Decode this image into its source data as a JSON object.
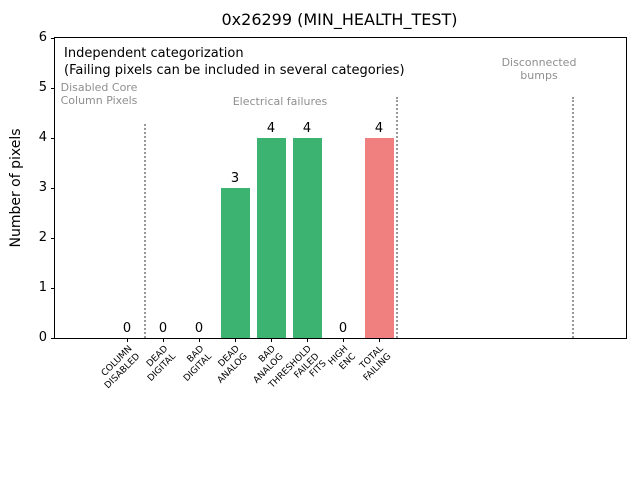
{
  "window": {
    "title": "0x26299 (MIN_HEALTH_TEST)"
  },
  "chart_data": {
    "type": "bar",
    "title": "0x26299 (MIN_HEALTH_TEST)",
    "xlabel": "",
    "ylabel": "Number of pixels",
    "ylim": [
      0,
      6
    ],
    "yticks": [
      0,
      1,
      2,
      3,
      4,
      5,
      6
    ],
    "grid": false,
    "legend": "none",
    "categories": [
      "COLUMN\nDISABLED",
      "DEAD\nDIGITAL",
      "BAD\nDIGITAL",
      "DEAD\nANALOG",
      "BAD\nANALOG",
      "THRESHOLD\nFAILED\nFITS",
      "HIGH\nENC",
      "TOTAL\nFAILING"
    ],
    "values": [
      0,
      0,
      0,
      3,
      4,
      4,
      0,
      4
    ],
    "value_labels": [
      "0",
      "0",
      "0",
      "3",
      "4",
      "4",
      "0",
      "4"
    ],
    "bar_colors": [
      "#3cb371",
      "#3cb371",
      "#3cb371",
      "#3cb371",
      "#3cb371",
      "#3cb371",
      "#3cb371",
      "#f08080"
    ],
    "colors": {
      "electrical_bars": "#3cb371",
      "total_failing_bar": "#f08080",
      "section_text": "#8f8f8f",
      "divider": "#999999"
    },
    "annotations": {
      "line1": "Independent categorization",
      "line2": "(Failing pixels can be included in several categories)"
    },
    "sections": [
      {
        "label": "Disabled Core\nColumn Pixels"
      },
      {
        "label": "Electrical failures"
      },
      {
        "label": "Disconnected\nbumps"
      }
    ],
    "section_dividers": [
      {
        "x": 0.5,
        "ymax": 4.28
      },
      {
        "x": 7.5,
        "ymax": 4.82
      },
      {
        "x": 12.4,
        "ymax": 4.82
      }
    ]
  }
}
